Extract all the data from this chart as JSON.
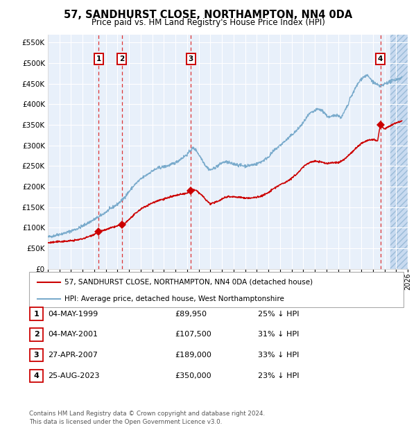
{
  "title": "57, SANDHURST CLOSE, NORTHAMPTON, NN4 0DA",
  "subtitle": "Price paid vs. HM Land Registry's House Price Index (HPI)",
  "footer_line1": "Contains HM Land Registry data © Crown copyright and database right 2024.",
  "footer_line2": "This data is licensed under the Open Government Licence v3.0.",
  "legend_red": "57, SANDHURST CLOSE, NORTHAMPTON, NN4 0DA (detached house)",
  "legend_blue": "HPI: Average price, detached house, West Northamptonshire",
  "transactions": [
    {
      "num": 1,
      "date": "04-MAY-1999",
      "price": 89950,
      "price_str": "£89,950",
      "pct": "25% ↓ HPI",
      "year_x": 1999.37
    },
    {
      "num": 2,
      "date": "04-MAY-2001",
      "price": 107500,
      "price_str": "£107,500",
      "pct": "31% ↓ HPI",
      "year_x": 2001.37
    },
    {
      "num": 3,
      "date": "27-APR-2007",
      "price": 189000,
      "price_str": "£189,000",
      "pct": "33% ↓ HPI",
      "year_x": 2007.32
    },
    {
      "num": 4,
      "date": "25-AUG-2023",
      "price": 350000,
      "price_str": "£350,000",
      "pct": "23% ↓ HPI",
      "year_x": 2023.65
    }
  ],
  "plot_bg": "#e8f0fa",
  "red_line_color": "#cc0000",
  "blue_line_color": "#7aabcc",
  "grid_color": "#ffffff",
  "vline_color": "#dd3333",
  "marker_color": "#cc0000",
  "hpi_key_points": [
    [
      1995.0,
      77000
    ],
    [
      1995.5,
      80000
    ],
    [
      1996.0,
      84000
    ],
    [
      1996.5,
      87000
    ],
    [
      1997.0,
      92000
    ],
    [
      1997.5,
      97000
    ],
    [
      1998.0,
      104000
    ],
    [
      1998.5,
      112000
    ],
    [
      1999.0,
      120000
    ],
    [
      1999.5,
      128000
    ],
    [
      2000.0,
      138000
    ],
    [
      2000.5,
      148000
    ],
    [
      2001.0,
      157000
    ],
    [
      2001.5,
      170000
    ],
    [
      2002.0,
      188000
    ],
    [
      2002.5,
      205000
    ],
    [
      2003.0,
      218000
    ],
    [
      2003.5,
      228000
    ],
    [
      2004.0,
      238000
    ],
    [
      2004.5,
      245000
    ],
    [
      2005.0,
      248000
    ],
    [
      2005.5,
      252000
    ],
    [
      2006.0,
      258000
    ],
    [
      2006.5,
      268000
    ],
    [
      2007.0,
      278000
    ],
    [
      2007.3,
      288000
    ],
    [
      2007.5,
      294000
    ],
    [
      2007.8,
      288000
    ],
    [
      2008.0,
      278000
    ],
    [
      2008.3,
      265000
    ],
    [
      2008.6,
      250000
    ],
    [
      2008.9,
      242000
    ],
    [
      2009.0,
      240000
    ],
    [
      2009.3,
      244000
    ],
    [
      2009.6,
      250000
    ],
    [
      2009.9,
      255000
    ],
    [
      2010.0,
      258000
    ],
    [
      2010.3,
      260000
    ],
    [
      2010.6,
      258000
    ],
    [
      2010.9,
      255000
    ],
    [
      2011.0,
      255000
    ],
    [
      2011.5,
      252000
    ],
    [
      2012.0,
      250000
    ],
    [
      2012.5,
      252000
    ],
    [
      2013.0,
      255000
    ],
    [
      2013.5,
      262000
    ],
    [
      2014.0,
      272000
    ],
    [
      2014.5,
      288000
    ],
    [
      2015.0,
      300000
    ],
    [
      2015.5,
      312000
    ],
    [
      2016.0,
      325000
    ],
    [
      2016.5,
      338000
    ],
    [
      2017.0,
      355000
    ],
    [
      2017.3,
      368000
    ],
    [
      2017.6,
      378000
    ],
    [
      2017.9,
      382000
    ],
    [
      2018.0,
      385000
    ],
    [
      2018.3,
      388000
    ],
    [
      2018.6,
      385000
    ],
    [
      2018.9,
      378000
    ],
    [
      2019.0,
      372000
    ],
    [
      2019.3,
      368000
    ],
    [
      2019.6,
      372000
    ],
    [
      2019.9,
      375000
    ],
    [
      2020.0,
      372000
    ],
    [
      2020.3,
      368000
    ],
    [
      2020.6,
      385000
    ],
    [
      2020.9,
      400000
    ],
    [
      2021.0,
      412000
    ],
    [
      2021.3,
      428000
    ],
    [
      2021.6,
      445000
    ],
    [
      2021.9,
      458000
    ],
    [
      2022.0,
      462000
    ],
    [
      2022.3,
      468000
    ],
    [
      2022.5,
      470000
    ],
    [
      2022.7,
      465000
    ],
    [
      2023.0,
      455000
    ],
    [
      2023.3,
      448000
    ],
    [
      2023.6,
      444000
    ],
    [
      2023.9,
      446000
    ],
    [
      2024.0,
      450000
    ],
    [
      2024.3,
      453000
    ],
    [
      2024.5,
      455000
    ],
    [
      2024.7,
      458000
    ],
    [
      2025.0,
      460000
    ],
    [
      2025.5,
      465000
    ]
  ],
  "red_key_points": [
    [
      1995.0,
      63000
    ],
    [
      1995.5,
      64500
    ],
    [
      1996.0,
      66000
    ],
    [
      1996.5,
      67000
    ],
    [
      1997.0,
      68000
    ],
    [
      1997.5,
      70000
    ],
    [
      1998.0,
      73000
    ],
    [
      1998.5,
      78000
    ],
    [
      1999.0,
      84000
    ],
    [
      1999.37,
      89950
    ],
    [
      1999.7,
      92000
    ],
    [
      2000.0,
      95000
    ],
    [
      2000.5,
      100000
    ],
    [
      2001.0,
      104000
    ],
    [
      2001.37,
      107500
    ],
    [
      2001.7,
      112000
    ],
    [
      2002.0,
      120000
    ],
    [
      2002.5,
      133000
    ],
    [
      2003.0,
      145000
    ],
    [
      2003.5,
      153000
    ],
    [
      2004.0,
      160000
    ],
    [
      2004.5,
      166000
    ],
    [
      2005.0,
      170000
    ],
    [
      2005.5,
      174000
    ],
    [
      2006.0,
      178000
    ],
    [
      2006.5,
      181000
    ],
    [
      2007.0,
      184000
    ],
    [
      2007.32,
      189000
    ],
    [
      2007.5,
      192000
    ],
    [
      2007.8,
      190000
    ],
    [
      2008.0,
      185000
    ],
    [
      2008.3,
      178000
    ],
    [
      2008.6,
      168000
    ],
    [
      2008.9,
      160000
    ],
    [
      2009.0,
      158000
    ],
    [
      2009.3,
      160000
    ],
    [
      2009.6,
      164000
    ],
    [
      2009.9,
      168000
    ],
    [
      2010.0,
      170000
    ],
    [
      2010.3,
      174000
    ],
    [
      2010.6,
      176000
    ],
    [
      2010.9,
      175000
    ],
    [
      2011.0,
      175000
    ],
    [
      2011.5,
      174000
    ],
    [
      2012.0,
      172000
    ],
    [
      2012.5,
      172000
    ],
    [
      2013.0,
      174000
    ],
    [
      2013.5,
      178000
    ],
    [
      2014.0,
      185000
    ],
    [
      2014.5,
      196000
    ],
    [
      2015.0,
      204000
    ],
    [
      2015.5,
      211000
    ],
    [
      2016.0,
      220000
    ],
    [
      2016.5,
      232000
    ],
    [
      2017.0,
      248000
    ],
    [
      2017.5,
      258000
    ],
    [
      2018.0,
      262000
    ],
    [
      2018.5,
      260000
    ],
    [
      2019.0,
      256000
    ],
    [
      2019.5,
      258000
    ],
    [
      2020.0,
      258000
    ],
    [
      2020.5,
      265000
    ],
    [
      2021.0,
      278000
    ],
    [
      2021.5,
      292000
    ],
    [
      2022.0,
      305000
    ],
    [
      2022.5,
      312000
    ],
    [
      2023.0,
      314000
    ],
    [
      2023.4,
      310000
    ],
    [
      2023.65,
      350000
    ],
    [
      2023.9,
      342000
    ],
    [
      2024.0,
      340000
    ],
    [
      2024.5,
      348000
    ],
    [
      2025.0,
      355000
    ],
    [
      2025.5,
      360000
    ]
  ],
  "xlim": [
    1995.0,
    2026.0
  ],
  "ylim": [
    0,
    570000
  ],
  "yticks": [
    0,
    50000,
    100000,
    150000,
    200000,
    250000,
    300000,
    350000,
    400000,
    450000,
    500000,
    550000
  ],
  "xtick_years": [
    1995,
    1996,
    1997,
    1998,
    1999,
    2000,
    2001,
    2002,
    2003,
    2004,
    2005,
    2006,
    2007,
    2008,
    2009,
    2010,
    2011,
    2012,
    2013,
    2014,
    2015,
    2016,
    2017,
    2018,
    2019,
    2020,
    2021,
    2022,
    2023,
    2024,
    2025,
    2026
  ],
  "future_start": 2024.5
}
